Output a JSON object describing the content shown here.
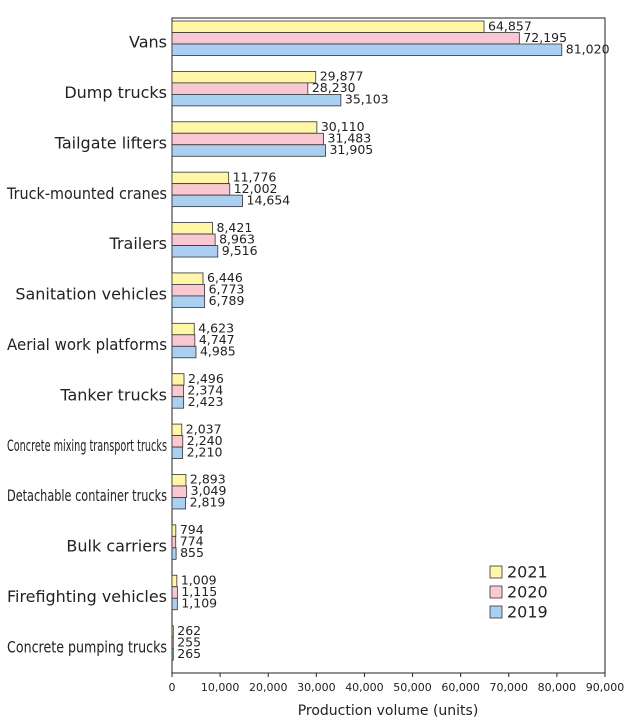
{
  "chart_data": {
    "type": "barh",
    "xlabel": "Production volume (units)",
    "categories": [
      "Vans",
      "Dump trucks",
      "Tailgate lifters",
      "Truck-mounted cranes",
      "Trailers",
      "Sanitation vehicles",
      "Aerial work platforms",
      "Tanker trucks",
      "Concrete mixing transport trucks",
      "Detachable container trucks",
      "Bulk carriers",
      "Firefighting vehicles",
      "Concrete pumping trucks"
    ],
    "series": [
      {
        "name": "2021",
        "color": "#fff6a8",
        "values": [
          64857,
          29877,
          30110,
          11776,
          8421,
          6446,
          4623,
          2496,
          2037,
          2893,
          794,
          1009,
          262
        ],
        "value_labels": [
          "64,857",
          "29,877",
          "30,110",
          "11,776",
          "8,421",
          "6,446",
          "4,623",
          "2,496",
          "2,037",
          "2,893",
          "794",
          "1,009",
          "262"
        ]
      },
      {
        "name": "2020",
        "color": "#f9c8d3",
        "values": [
          72195,
          28230,
          31483,
          12002,
          8963,
          6773,
          4747,
          2374,
          2240,
          3049,
          774,
          1115,
          255
        ],
        "value_labels": [
          "72,195",
          "28,230",
          "31,483",
          "12,002",
          "8,963",
          "6,773",
          "4,747",
          "2,374",
          "2,240",
          "3,049",
          "774",
          "1,115",
          "255"
        ]
      },
      {
        "name": "2019",
        "color": "#aacff0",
        "values": [
          81020,
          35103,
          31905,
          14654,
          9516,
          6789,
          4985,
          2423,
          2210,
          2819,
          855,
          1109,
          265
        ],
        "value_labels": [
          "81,020",
          "35,103",
          "31,905",
          "14,654",
          "9,516",
          "6,789",
          "4,985",
          "2,423",
          "2,210",
          "2,819",
          "855",
          "1,109",
          "265"
        ]
      }
    ],
    "xlim": [
      0,
      90000
    ],
    "xticks": [
      0,
      {
        "value": 10000,
        "label": "10,000"
      },
      {
        "value": 20000,
        "label": "20,000"
      },
      {
        "value": 30000,
        "label": "30,000"
      },
      {
        "value": 40000,
        "label": "40,000"
      },
      {
        "value": 50000,
        "label": "50,000"
      },
      {
        "value": 60000,
        "label": "60,000"
      },
      {
        "value": 70000,
        "label": "70,000"
      },
      {
        "value": 80000,
        "label": "80,000"
      },
      {
        "value": 90000,
        "label": "90,000"
      }
    ],
    "legend": "lower right"
  }
}
